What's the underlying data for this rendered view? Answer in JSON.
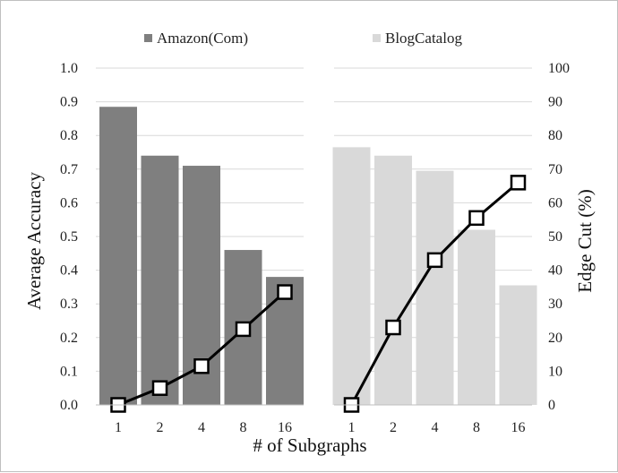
{
  "chart_data": {
    "type": "bar+line",
    "xlabel": "# of Subgraphs",
    "ylabel": "Average Accuracy",
    "y2label": "Edge Cut (%)",
    "ylim": [
      0,
      1.0
    ],
    "y2lim": [
      0,
      100
    ],
    "yticks": [
      "0.0",
      "0.1",
      "0.2",
      "0.3",
      "0.4",
      "0.5",
      "0.6",
      "0.7",
      "0.8",
      "0.9",
      "1.0"
    ],
    "y2ticks": [
      "0",
      "10",
      "20",
      "30",
      "40",
      "50",
      "60",
      "70",
      "80",
      "90",
      "100"
    ],
    "grid": true,
    "legend_position": "top",
    "panels": [
      {
        "name": "Amazon(Com)",
        "color": "#7f7f7f",
        "categories": [
          "1",
          "2",
          "4",
          "8",
          "16"
        ],
        "accuracy": [
          0.885,
          0.74,
          0.71,
          0.46,
          0.38
        ],
        "edge_cut": [
          0,
          5,
          11.5,
          22.5,
          33.5
        ]
      },
      {
        "name": "BlogCatalog",
        "color": "#d9d9d9",
        "categories": [
          "1",
          "2",
          "4",
          "8",
          "16"
        ],
        "accuracy": [
          0.765,
          0.74,
          0.695,
          0.52,
          0.355
        ],
        "edge_cut": [
          0,
          23,
          43,
          55.5,
          66
        ]
      }
    ]
  }
}
